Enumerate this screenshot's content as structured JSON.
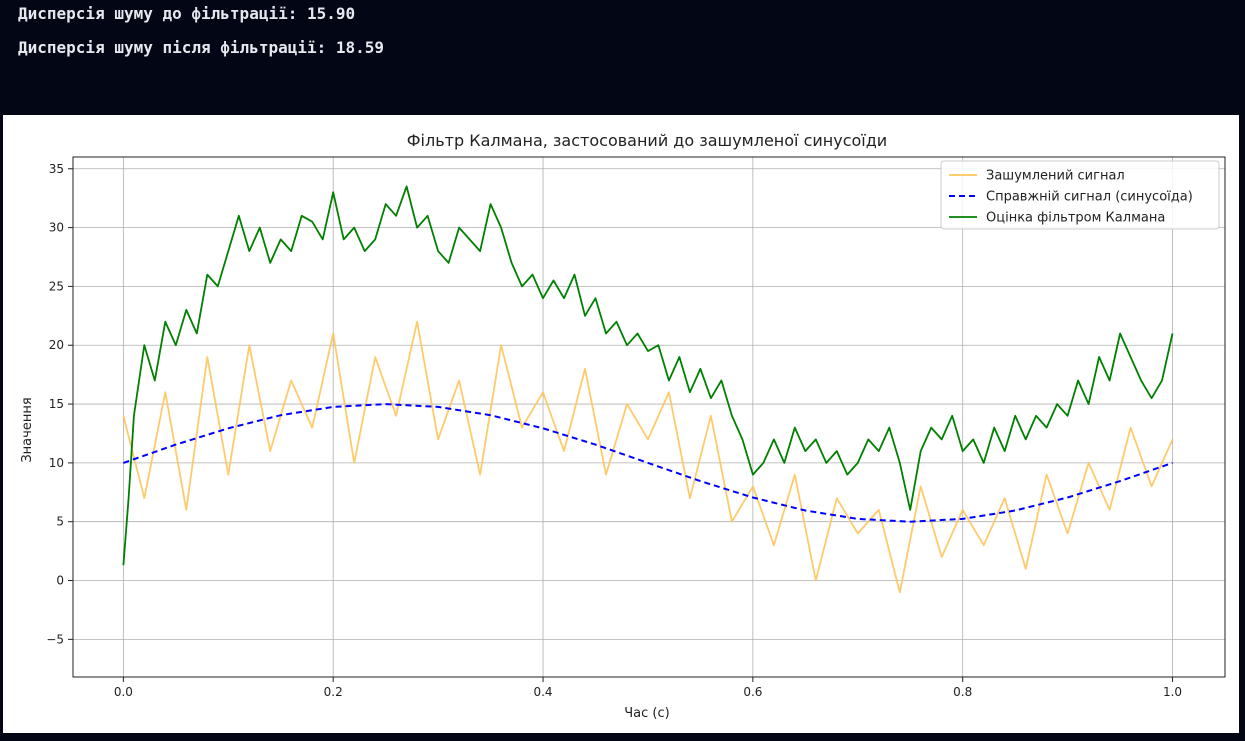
{
  "console": {
    "lines": [
      "Дисперсія шуму до фільтрації: 15.90",
      "Дисперсія шуму після фільтрації: 18.59"
    ]
  },
  "colors": {
    "background": "#030615",
    "console_text": "#e6e8ee",
    "noisy": "#ffc45c",
    "true": "#0000ff",
    "kalman": "#008000"
  },
  "chart_data": {
    "type": "line",
    "title": "Фільтр Калмана, застосований до зашумленої синусоїди",
    "xlabel": "Час (с)",
    "ylabel": "Значення",
    "xlim": [
      -0.048,
      1.05
    ],
    "ylim": [
      -8.2,
      36.0
    ],
    "xticks": [
      0.0,
      0.2,
      0.4,
      0.6,
      0.8,
      1.0
    ],
    "xtick_labels": [
      "0.0",
      "0.2",
      "0.4",
      "0.6",
      "0.8",
      "1.0"
    ],
    "yticks": [
      -5,
      0,
      5,
      10,
      15,
      20,
      25,
      30,
      35
    ],
    "ytick_labels": [
      "−5",
      "0",
      "5",
      "10",
      "15",
      "20",
      "25",
      "30",
      "35"
    ],
    "grid": true,
    "legend_position": "top-right",
    "series": [
      {
        "name": "Зашумлений сигнал",
        "style": "solid",
        "x": [
          0.0,
          0.02,
          0.04,
          0.06,
          0.08,
          0.1,
          0.12,
          0.14,
          0.16,
          0.18,
          0.2,
          0.22,
          0.24,
          0.26,
          0.28,
          0.3,
          0.32,
          0.34,
          0.36,
          0.38,
          0.4,
          0.42,
          0.44,
          0.46,
          0.48,
          0.5,
          0.52,
          0.54,
          0.56,
          0.58,
          0.6,
          0.62,
          0.64,
          0.66,
          0.68,
          0.7,
          0.72,
          0.74,
          0.76,
          0.78,
          0.8,
          0.82,
          0.84,
          0.86,
          0.88,
          0.9,
          0.92,
          0.94,
          0.96,
          0.98,
          1.0
        ],
        "values": [
          14,
          7,
          16,
          6,
          19,
          9,
          20,
          11,
          17,
          13,
          21,
          10,
          19,
          14,
          22,
          12,
          17,
          9,
          20,
          13,
          16,
          11,
          18,
          9,
          15,
          12,
          16,
          7,
          14,
          5,
          8,
          3,
          9,
          0,
          7,
          4,
          6,
          -1,
          8,
          2,
          6,
          3,
          7,
          1,
          9,
          4,
          10,
          6,
          13,
          8,
          12
        ]
      },
      {
        "name": "Справжній сигнал (синусоїда)",
        "style": "dashed",
        "x": [
          0.0,
          0.05,
          0.1,
          0.15,
          0.2,
          0.25,
          0.3,
          0.35,
          0.4,
          0.45,
          0.5,
          0.55,
          0.6,
          0.65,
          0.7,
          0.75,
          0.8,
          0.85,
          0.9,
          0.95,
          1.0
        ],
        "values": [
          10.0,
          11.55,
          12.94,
          14.05,
          14.76,
          15.0,
          14.76,
          14.05,
          12.94,
          11.55,
          10.0,
          8.45,
          7.06,
          5.95,
          5.24,
          5.0,
          5.24,
          5.95,
          7.06,
          8.45,
          10.0
        ]
      },
      {
        "name": "Оцінка фільтром Калмана",
        "style": "solid",
        "x": [
          0.0,
          0.005,
          0.01,
          0.02,
          0.03,
          0.04,
          0.05,
          0.06,
          0.07,
          0.08,
          0.09,
          0.1,
          0.11,
          0.12,
          0.13,
          0.14,
          0.15,
          0.16,
          0.17,
          0.18,
          0.19,
          0.2,
          0.21,
          0.22,
          0.23,
          0.24,
          0.25,
          0.26,
          0.27,
          0.28,
          0.29,
          0.3,
          0.31,
          0.32,
          0.33,
          0.34,
          0.35,
          0.36,
          0.37,
          0.38,
          0.39,
          0.4,
          0.41,
          0.42,
          0.43,
          0.44,
          0.45,
          0.46,
          0.47,
          0.48,
          0.49,
          0.5,
          0.51,
          0.52,
          0.53,
          0.54,
          0.55,
          0.56,
          0.57,
          0.58,
          0.59,
          0.6,
          0.61,
          0.62,
          0.63,
          0.64,
          0.65,
          0.66,
          0.67,
          0.68,
          0.69,
          0.7,
          0.71,
          0.72,
          0.73,
          0.74,
          0.75,
          0.76,
          0.77,
          0.78,
          0.79,
          0.8,
          0.81,
          0.82,
          0.83,
          0.84,
          0.85,
          0.86,
          0.87,
          0.88,
          0.89,
          0.9,
          0.91,
          0.92,
          0.93,
          0.94,
          0.95,
          0.96,
          0.97,
          0.98,
          0.99,
          1.0
        ],
        "values": [
          1.3,
          7.0,
          14.0,
          20.0,
          17.0,
          22.0,
          20.0,
          23.0,
          21.0,
          26.0,
          25.0,
          28.0,
          31.0,
          28.0,
          30.0,
          27.0,
          29.0,
          28.0,
          31.0,
          30.5,
          29.0,
          33.0,
          29.0,
          30.0,
          28.0,
          29.0,
          32.0,
          31.0,
          33.5,
          30.0,
          31.0,
          28.0,
          27.0,
          30.0,
          29.0,
          28.0,
          32.0,
          30.0,
          27.0,
          25.0,
          26.0,
          24.0,
          25.5,
          24.0,
          26.0,
          22.5,
          24.0,
          21.0,
          22.0,
          20.0,
          21.0,
          19.5,
          20.0,
          17.0,
          19.0,
          16.0,
          18.0,
          15.5,
          17.0,
          14.0,
          12.0,
          9.0,
          10.0,
          12.0,
          10.0,
          13.0,
          11.0,
          12.0,
          10.0,
          11.0,
          9.0,
          10.0,
          12.0,
          11.0,
          13.0,
          10.0,
          6.0,
          11.0,
          13.0,
          12.0,
          14.0,
          11.0,
          12.0,
          10.0,
          13.0,
          11.0,
          14.0,
          12.0,
          14.0,
          13.0,
          15.0,
          14.0,
          17.0,
          15.0,
          19.0,
          17.0,
          21.0,
          19.0,
          17.0,
          15.5,
          17.0,
          21.0
        ]
      }
    ]
  }
}
